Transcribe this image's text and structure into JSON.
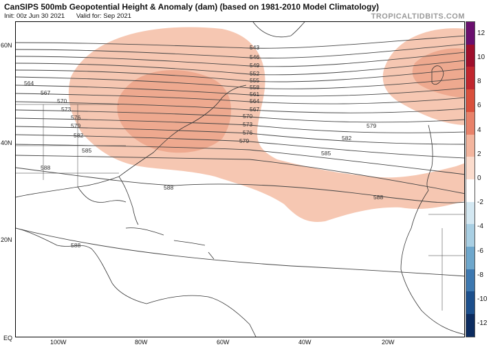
{
  "header": {
    "title": "CanSIPS 500mb Geopotential Height & Anomaly (dam) (based on 1981-2010 Model Climatology)",
    "init": "Init: 00z Jun 30 2021",
    "valid": "Valid for: Sep 2021",
    "brand": "TROPICALTIDBITS.COM"
  },
  "axes": {
    "lat_labels": [
      "60N",
      "40N",
      "20N",
      "EQ"
    ],
    "lon_labels": [
      "100W",
      "80W",
      "60W",
      "40W",
      "20W"
    ]
  },
  "contours": {
    "labels": [
      "543",
      "546",
      "549",
      "552",
      "555",
      "558",
      "561",
      "564",
      "567",
      "570",
      "573",
      "576",
      "579",
      "582",
      "585",
      "588"
    ],
    "left_labels": [
      "564",
      "567",
      "570",
      "573",
      "576",
      "579",
      "582",
      "585",
      "588",
      "588"
    ],
    "right_labels": [
      "579",
      "582",
      "585",
      "588",
      "588"
    ]
  },
  "colorbar": {
    "ticks": [
      "12",
      "10",
      "8",
      "6",
      "4",
      "2",
      "0",
      "-2",
      "-4",
      "-6",
      "-8",
      "-10",
      "-12"
    ],
    "colors": [
      "#6a0f6e",
      "#9e0f2c",
      "#c0262e",
      "#d9503c",
      "#e8826a",
      "#f3b59e",
      "#fbdccd",
      "#ffffff",
      "#d4e8f2",
      "#a9cfe3",
      "#6ea7cc",
      "#3d78b0",
      "#1c4f8c",
      "#0c2c60"
    ]
  },
  "colors": {
    "anomaly_fill": "#f6c7b2",
    "anomaly_fill_strong": "#eea98f",
    "contour": "#444444",
    "land_border": "#333333"
  }
}
